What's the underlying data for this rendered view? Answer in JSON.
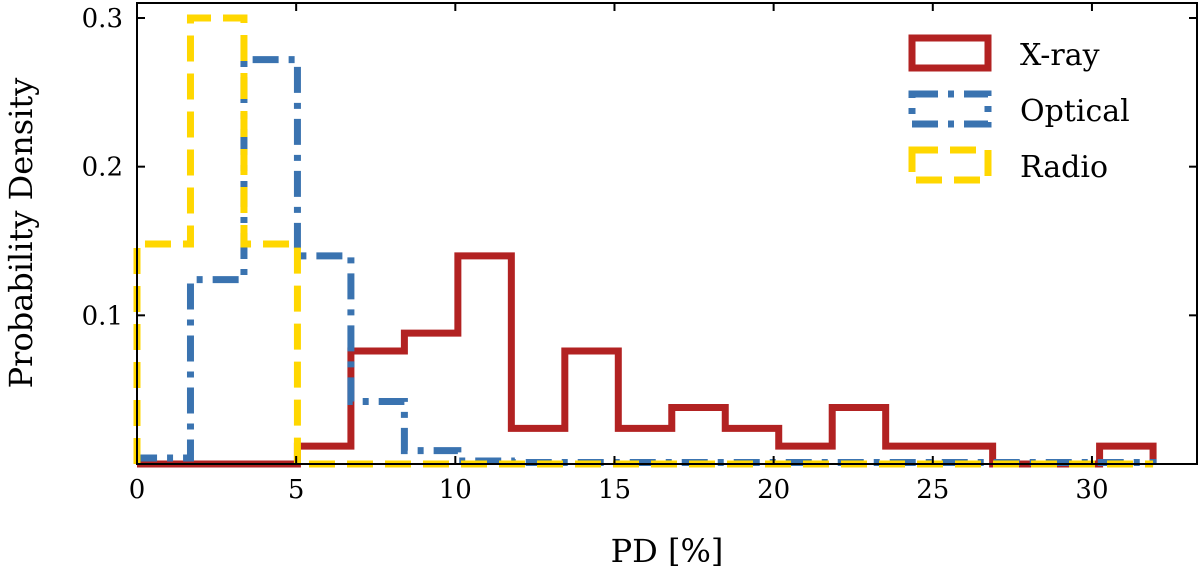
{
  "chart_data": {
    "type": "histogram",
    "xlabel": "PD [%]",
    "ylabel": "Probability Density",
    "xlim": [
      0,
      33.3
    ],
    "ylim": [
      0,
      0.3
    ],
    "xticks": [
      0,
      5,
      10,
      15,
      20,
      25,
      30
    ],
    "yticks": [
      0.1,
      0.2,
      0.3
    ],
    "tick_direction": "in",
    "grid": false,
    "legend_position": "top-right",
    "series": [
      {
        "name": "X-ray",
        "style": "solid",
        "color": "#b22222",
        "bin_edges": [
          0,
          1.68,
          3.36,
          5.04,
          6.72,
          8.4,
          10.08,
          11.76,
          13.44,
          15.12,
          16.8,
          18.48,
          20.16,
          21.84,
          23.52,
          25.2,
          26.88,
          28.56,
          30.24,
          31.92
        ],
        "values": [
          0,
          0,
          0,
          0.012,
          0.076,
          0.088,
          0.14,
          0.024,
          0.076,
          0.024,
          0.038,
          0.024,
          0.012,
          0.038,
          0.012,
          0.012,
          0,
          0,
          0.012
        ]
      },
      {
        "name": "Optical",
        "style": "dashdot",
        "color": "#3a73b0",
        "bin_edges": [
          0,
          1.68,
          3.36,
          5.04,
          6.72,
          8.4,
          10.08,
          11.76,
          13.44,
          15.12,
          16.8,
          18.48,
          20.16,
          21.84,
          23.52,
          25.2,
          26.88,
          28.56,
          30.24,
          31.92
        ],
        "values": [
          0.004,
          0.124,
          0.272,
          0.14,
          0.042,
          0.009,
          0.002,
          0.001,
          0.001,
          0.001,
          0.001,
          0.001,
          0.001,
          0.001,
          0.001,
          0.001,
          0.001,
          0.001,
          0.001
        ]
      },
      {
        "name": "Radio",
        "style": "dashed",
        "color": "#ffd700",
        "bin_edges": [
          0,
          1.68,
          3.36,
          5.04,
          6.72,
          8.4,
          10.08,
          11.76,
          13.44,
          15.12,
          16.8,
          18.48,
          20.16,
          21.84,
          23.52,
          25.2,
          26.88,
          28.56,
          30.24,
          31.92
        ],
        "values": [
          0.148,
          0.3,
          0.148,
          0,
          0,
          0,
          0,
          0,
          0,
          0,
          0,
          0,
          0,
          0,
          0,
          0,
          0,
          0,
          0
        ]
      }
    ]
  }
}
